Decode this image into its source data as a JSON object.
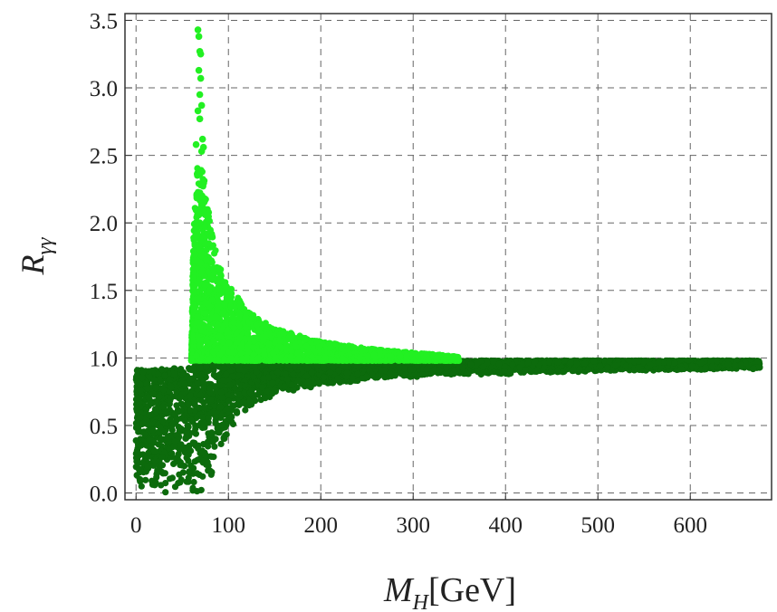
{
  "chart_data": {
    "type": "scatter",
    "title": "",
    "xlabel": {
      "base": "M",
      "sub": "H",
      "rest": "[GeV]"
    },
    "ylabel": {
      "base": "R",
      "sub": "γγ"
    },
    "xlim": [
      -12,
      688
    ],
    "ylim": [
      -0.05,
      3.55
    ],
    "xticks": [
      0,
      100,
      200,
      300,
      400,
      500,
      600
    ],
    "yticks": [
      "0.0",
      "0.5",
      "1.0",
      "1.5",
      "2.0",
      "2.5",
      "3.0",
      "3.5"
    ],
    "grid": true,
    "series": [
      {
        "color": "#22f022",
        "description_region": "enhanced",
        "regions": [
          {
            "x_from": 60,
            "x_to": 350,
            "y_min": 0.98,
            "y_max_at": [
              [
                60,
                0.98
              ],
              [
                62,
                1.9
              ],
              [
                66,
                2.4
              ],
              [
                70,
                2.45
              ],
              [
                75,
                2.3
              ],
              [
                80,
                2.0
              ],
              [
                90,
                1.7
              ],
              [
                100,
                1.55
              ],
              [
                120,
                1.35
              ],
              [
                150,
                1.22
              ],
              [
                200,
                1.12
              ],
              [
                250,
                1.07
              ],
              [
                300,
                1.04
              ],
              [
                350,
                1.01
              ]
            ]
          }
        ],
        "outliers": [
          [
            67,
            3.43
          ],
          [
            68,
            3.38
          ],
          [
            69,
            3.27
          ],
          [
            70,
            3.25
          ],
          [
            68,
            3.13
          ],
          [
            70,
            3.07
          ],
          [
            69,
            2.95
          ],
          [
            71,
            2.87
          ],
          [
            67,
            2.83
          ],
          [
            69,
            2.77
          ],
          [
            72,
            2.62
          ],
          [
            73,
            2.56
          ],
          [
            65,
            2.58
          ],
          [
            71,
            2.53
          ]
        ]
      },
      {
        "color": "#0c6b0c",
        "description_region": "suppressed",
        "regions": [
          {
            "x_from": 0,
            "x_to": 675,
            "y_max_at": [
              [
                0,
                0.91
              ],
              [
                60,
                0.93
              ],
              [
                62,
                0.98
              ],
              [
                675,
                0.98
              ]
            ],
            "y_min_at": [
              [
                0,
                0.0
              ],
              [
                80,
                0.0
              ],
              [
                90,
                0.25
              ],
              [
                100,
                0.45
              ],
              [
                120,
                0.62
              ],
              [
                150,
                0.72
              ],
              [
                200,
                0.8
              ],
              [
                300,
                0.86
              ],
              [
                400,
                0.88
              ],
              [
                500,
                0.9
              ],
              [
                600,
                0.91
              ],
              [
                675,
                0.92
              ]
            ]
          }
        ],
        "outliers": [
          [
            672,
            0.93
          ],
          [
            675,
            0.93
          ],
          [
            668,
            0.92
          ],
          [
            2,
            0.6
          ],
          [
            3,
            0.7
          ],
          [
            1,
            0.62
          ]
        ]
      }
    ]
  }
}
